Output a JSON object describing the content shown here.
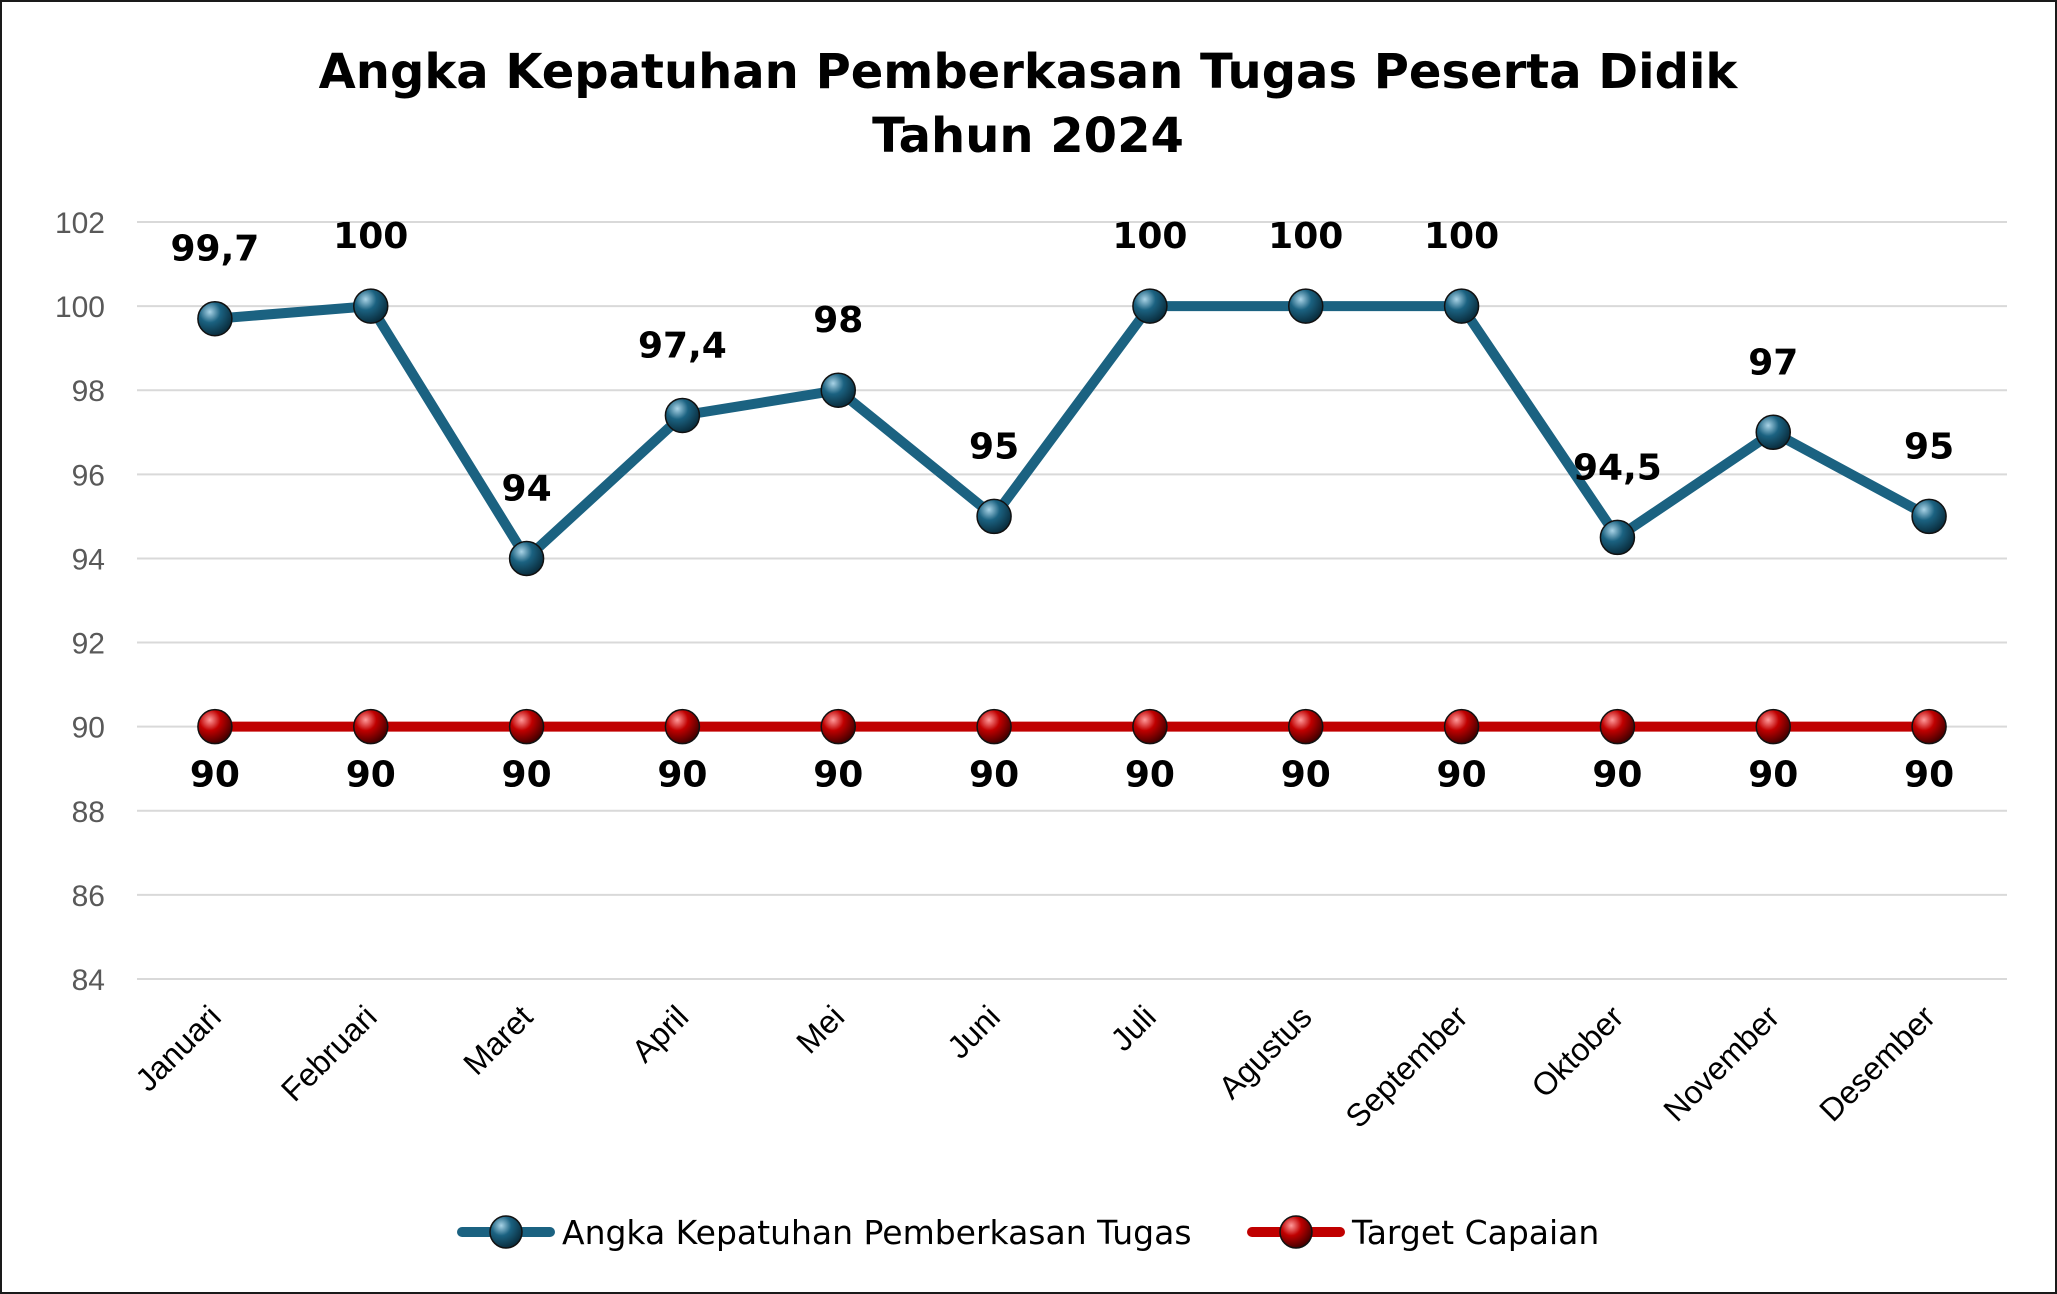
{
  "colors": {
    "series1": "#1b6281",
    "series2": "#c00000"
  },
  "chart_data": {
    "type": "line",
    "title": "Angka Kepatuhan Pemberkasan Tugas Peserta Didik",
    "subtitle": "Tahun 2024",
    "xlabel": "",
    "ylabel": "",
    "ylim": [
      84,
      102
    ],
    "yticks": [
      84,
      86,
      88,
      90,
      92,
      94,
      96,
      98,
      100,
      102
    ],
    "grid": true,
    "legend_position": "bottom",
    "categories": [
      "Januari",
      "Februari",
      "Maret",
      "April",
      "Mei",
      "Juni",
      "Juli",
      "Agustus",
      "September",
      "Oktober",
      "November",
      "Desember"
    ],
    "series": [
      {
        "name": "Angka Kepatuhan Pemberkasan Tugas",
        "color": "#1b6281",
        "values": [
          99.7,
          100,
          94,
          97.4,
          98,
          95,
          100,
          100,
          100,
          94.5,
          97,
          95
        ],
        "labels": [
          "99,7",
          "100",
          "94",
          "97,4",
          "98",
          "95",
          "100",
          "100",
          "100",
          "94,5",
          "97",
          "95"
        ],
        "label_position": "above"
      },
      {
        "name": "Target Capaian",
        "color": "#c00000",
        "values": [
          90,
          90,
          90,
          90,
          90,
          90,
          90,
          90,
          90,
          90,
          90,
          90
        ],
        "labels": [
          "90",
          "90",
          "90",
          "90",
          "90",
          "90",
          "90",
          "90",
          "90",
          "90",
          "90",
          "90"
        ],
        "label_position": "below"
      }
    ]
  }
}
